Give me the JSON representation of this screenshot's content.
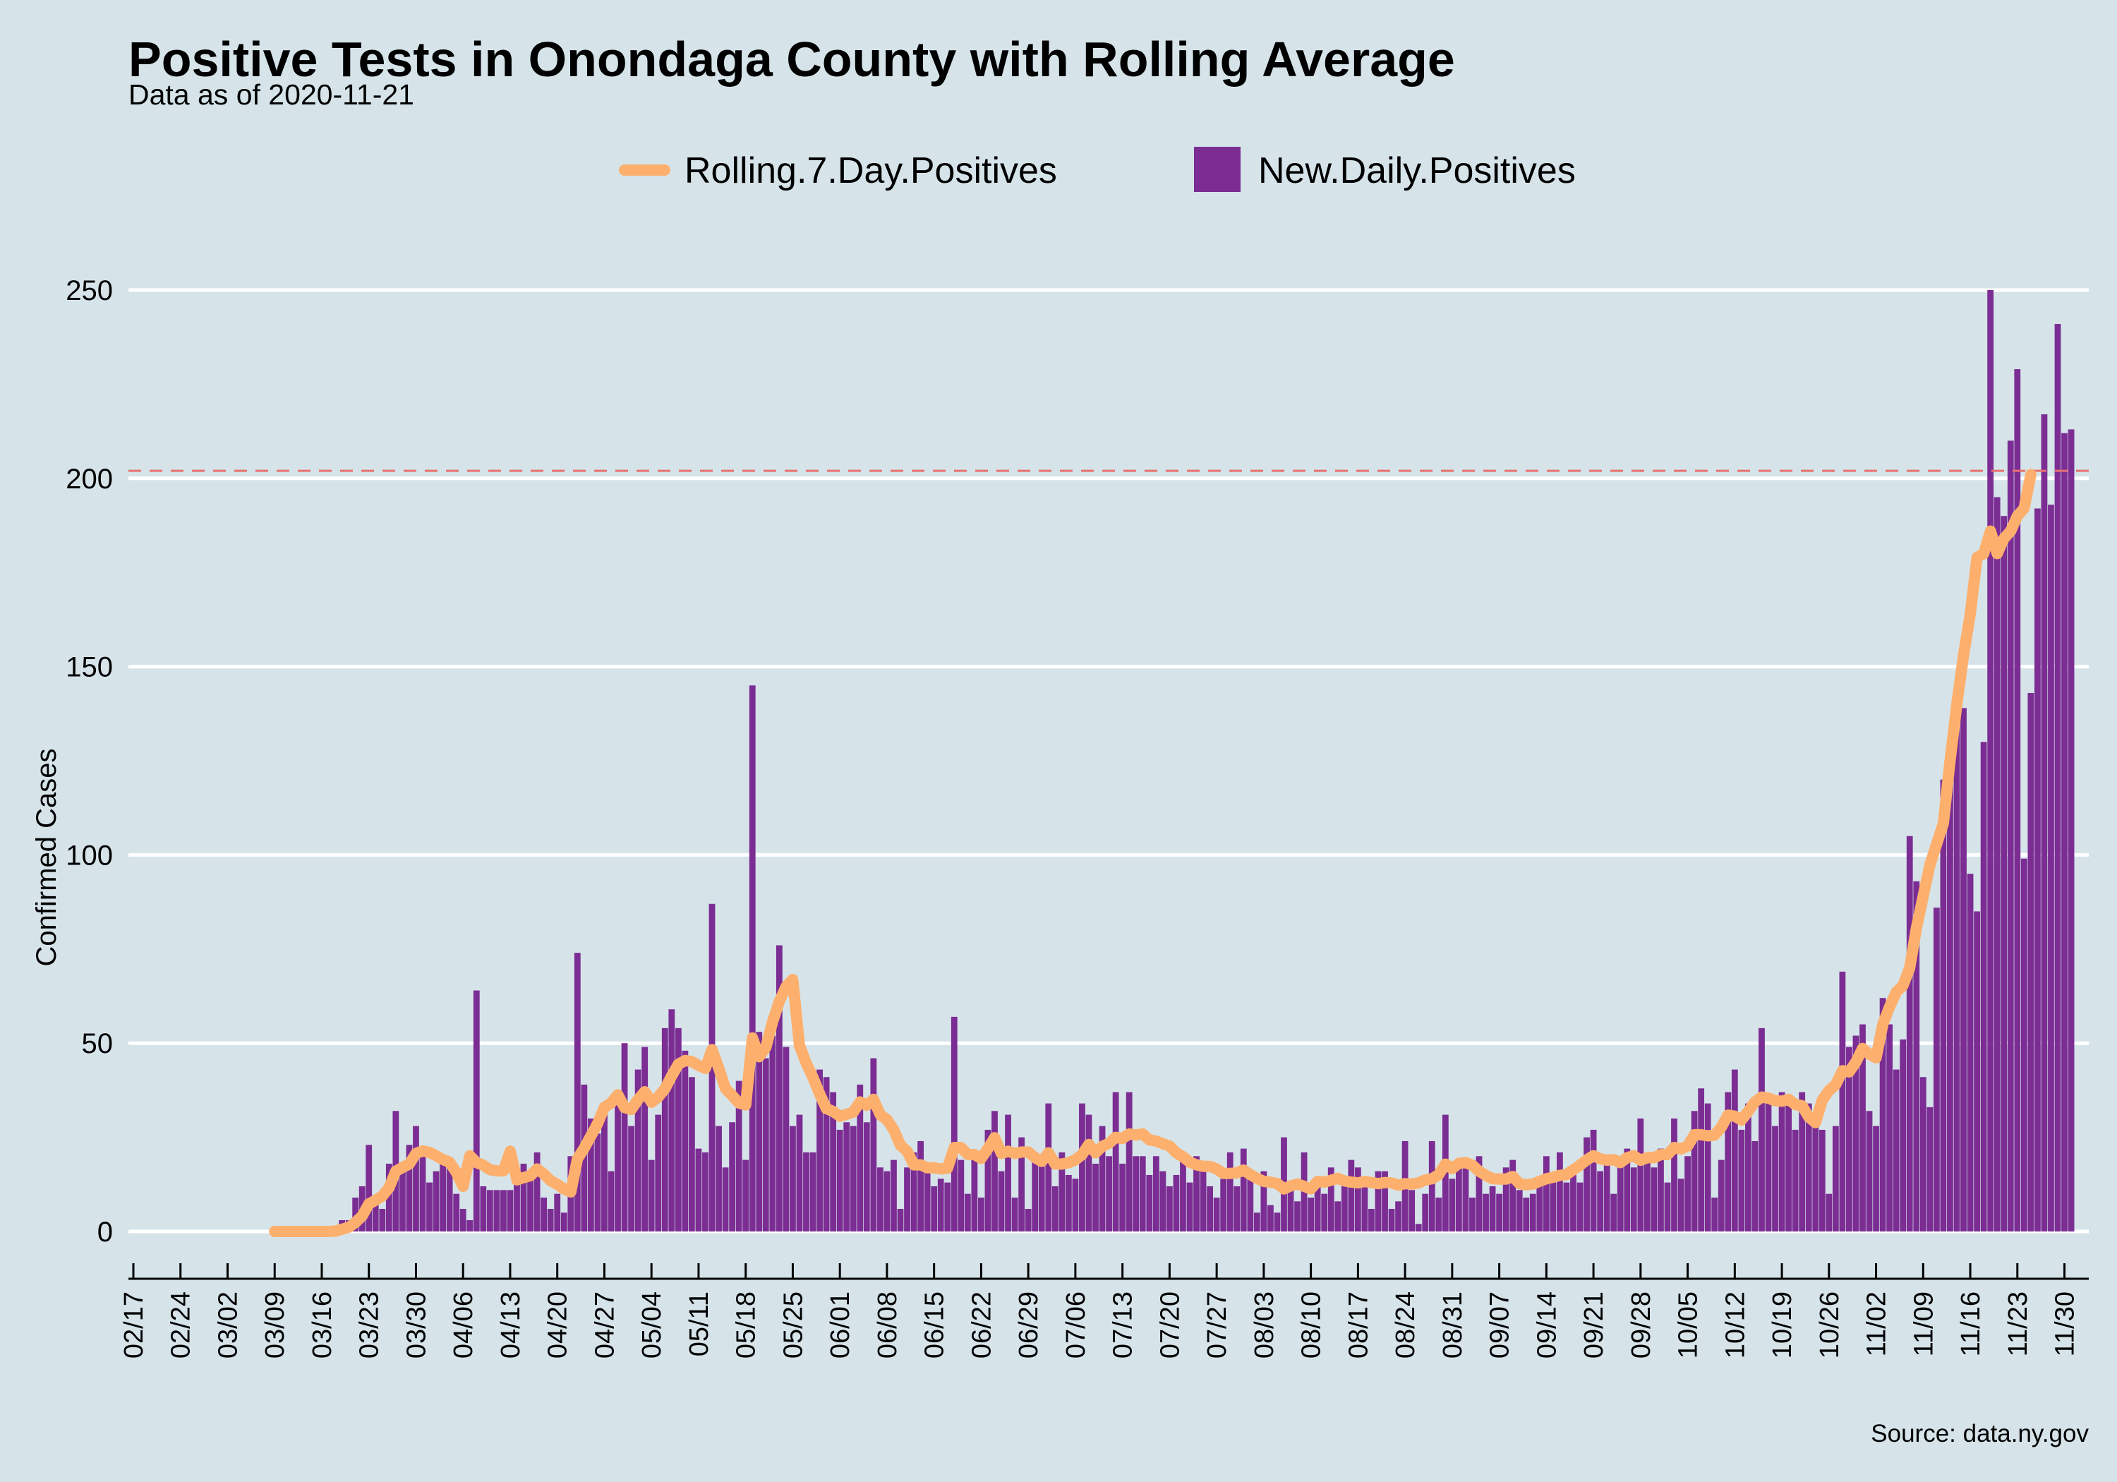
{
  "title": "Positive Tests in Onondaga County with Rolling Average",
  "subtitle": "Data as of 2020-11-21",
  "caption": "Source: data.ny.gov",
  "colors": {
    "background": "#d6e4ea",
    "bars": "#7b2d93",
    "rolling_line": "#fdb06d",
    "threshold_line": "#e8716f",
    "grid": "#ffffff"
  },
  "legend": {
    "position": "top",
    "items": [
      {
        "label": "Rolling.7.Day.Positives",
        "kind": "line",
        "color": "#fdb06d"
      },
      {
        "label": "New.Daily.Positives",
        "kind": "bar",
        "color": "#7b2d93"
      }
    ]
  },
  "chart_data": {
    "type": "bar",
    "ylabel": "Confirmed Cases",
    "xlabel": "",
    "ylim": [
      -10,
      260
    ],
    "xlim": [
      "2020-02-17",
      "2020-12-04"
    ],
    "grid": true,
    "y_ticks": [
      0,
      50,
      100,
      150,
      200,
      250
    ],
    "x_tick_labels": [
      "02/17",
      "02/24",
      "03/02",
      "03/09",
      "03/16",
      "03/23",
      "03/30",
      "04/06",
      "04/13",
      "04/20",
      "04/27",
      "05/04",
      "05/11",
      "05/18",
      "05/25",
      "06/01",
      "06/08",
      "06/15",
      "06/22",
      "06/29",
      "07/06",
      "07/13",
      "07/20",
      "07/27",
      "08/03",
      "08/10",
      "08/17",
      "08/24",
      "08/31",
      "09/07",
      "09/14",
      "09/21",
      "09/28",
      "10/05",
      "10/12",
      "10/19",
      "10/26",
      "11/02",
      "11/09",
      "11/16",
      "11/23",
      "11/30"
    ],
    "x_tick_dates": [
      "2020-02-17",
      "2020-02-24",
      "2020-03-02",
      "2020-03-09",
      "2020-03-16",
      "2020-03-23",
      "2020-03-30",
      "2020-04-06",
      "2020-04-13",
      "2020-04-20",
      "2020-04-27",
      "2020-05-04",
      "2020-05-11",
      "2020-05-18",
      "2020-05-25",
      "2020-06-01",
      "2020-06-08",
      "2020-06-15",
      "2020-06-22",
      "2020-06-29",
      "2020-07-06",
      "2020-07-13",
      "2020-07-20",
      "2020-07-27",
      "2020-08-03",
      "2020-08-10",
      "2020-08-17",
      "2020-08-24",
      "2020-08-31",
      "2020-09-07",
      "2020-09-14",
      "2020-09-21",
      "2020-09-28",
      "2020-10-05",
      "2020-10-12",
      "2020-10-19",
      "2020-10-26",
      "2020-11-02",
      "2020-11-09",
      "2020-11-16",
      "2020-11-23",
      "2020-11-30"
    ],
    "threshold_line": {
      "y": 202,
      "style": "dashed"
    },
    "series": [
      {
        "name": "New.Daily.Positives",
        "type": "bar",
        "start_date": "2020-03-09",
        "values": [
          0,
          0,
          0,
          0,
          0,
          0,
          0,
          0,
          0,
          1,
          3,
          3,
          9,
          12,
          23,
          8,
          6,
          18,
          32,
          16,
          23,
          28,
          21,
          13,
          16,
          20,
          19,
          10,
          6,
          3,
          64,
          12,
          11,
          11,
          11,
          11,
          13,
          18,
          14,
          21,
          9,
          6,
          10,
          5,
          20,
          74,
          39,
          30,
          26,
          34,
          16,
          37,
          50,
          28,
          43,
          49,
          19,
          31,
          54,
          59,
          54,
          48,
          41,
          22,
          21,
          87,
          28,
          17,
          29,
          40,
          19,
          145,
          53,
          46,
          52,
          76,
          49,
          28,
          31,
          21,
          21,
          43,
          41,
          37,
          27,
          29,
          28,
          39,
          29,
          46,
          17,
          16,
          19,
          6,
          17,
          21,
          24,
          18,
          12,
          14,
          13,
          57,
          19,
          10,
          20,
          9,
          27,
          32,
          16,
          31,
          9,
          25,
          6,
          21,
          20,
          34,
          12,
          21,
          15,
          14,
          34,
          31,
          18,
          28,
          20,
          37,
          18,
          37,
          20,
          20,
          15,
          20,
          16,
          12,
          15,
          21,
          13,
          20,
          16,
          12,
          9,
          14,
          21,
          12,
          22,
          14,
          5,
          16,
          7,
          5,
          25,
          13,
          8,
          21,
          9,
          12,
          10,
          17,
          8,
          13,
          19,
          17,
          12,
          6,
          16,
          16,
          6,
          8,
          24,
          11,
          2,
          10,
          24,
          9,
          31,
          14,
          17,
          19,
          9,
          20,
          10,
          12,
          10,
          17,
          19,
          11,
          9,
          10,
          12,
          20,
          13,
          21,
          13,
          15,
          13,
          25,
          27,
          16,
          20,
          10,
          18,
          22,
          17,
          30,
          20,
          17,
          22,
          13,
          30,
          14,
          20,
          32,
          38,
          34,
          9,
          19,
          37,
          43,
          27,
          34,
          24,
          54,
          35,
          28,
          37,
          36,
          27,
          37,
          34,
          29,
          27,
          10,
          28,
          69,
          49,
          52,
          55,
          32,
          28,
          62,
          55,
          43,
          51,
          105,
          93,
          41,
          33,
          86,
          120,
          121,
          135,
          139,
          95,
          85,
          130,
          250,
          195,
          190,
          210,
          229,
          99,
          143,
          192,
          217,
          193,
          241,
          212,
          213
        ]
      },
      {
        "name": "Rolling.7.Day.Positives",
        "type": "line",
        "start_date": "2020-03-09",
        "values": [
          0,
          0,
          0,
          0,
          0,
          0,
          0,
          0,
          0,
          0.1,
          0.6,
          1.1,
          2.4,
          4.1,
          7.3,
          8.3,
          9.4,
          11.6,
          16.0,
          17.0,
          17.9,
          20.7,
          21.4,
          21.0,
          20.1,
          19.1,
          18.4,
          15.7,
          12.0,
          20.1,
          18.3,
          17.6,
          16.4,
          16.1,
          16.1,
          21.3,
          13.7,
          14.3,
          14.8,
          16.6,
          15.3,
          13.5,
          12.5,
          11.3,
          10.5,
          19.3,
          22.1,
          25.4,
          28.7,
          33.0,
          34.1,
          36.3,
          32.9,
          32.4,
          35.0,
          37.1,
          34.3,
          35.7,
          37.9,
          41.3,
          44.4,
          45.4,
          45.1,
          44.1,
          43.3,
          48.3,
          43.4,
          37.9,
          36.1,
          34.1,
          33.6,
          51.4,
          46.4,
          48.9,
          55.7,
          61.1,
          65.0,
          66.9,
          49.3,
          44.7,
          40.9,
          36.5,
          32.6,
          31.9,
          30.6,
          31.1,
          31.7,
          34.4,
          33.5,
          35.1,
          31.0,
          29.7,
          27.0,
          22.9,
          21.3,
          17.7,
          17.7,
          16.9,
          16.9,
          16.6,
          16.8,
          22.3,
          22.3,
          20.5,
          20.4,
          19.4,
          22.0,
          24.9,
          20.7,
          21.3,
          20.7,
          21.1,
          21.1,
          19.6,
          18.6,
          20.9,
          17.9,
          17.9,
          18.3,
          19.0,
          20.4,
          23.1,
          20.9,
          22.6,
          23.4,
          25.0,
          24.7,
          25.9,
          25.6,
          25.9,
          24.3,
          24.0,
          23.3,
          22.7,
          20.9,
          19.8,
          18.4,
          17.7,
          17.3,
          17.3,
          16.6,
          15.4,
          15.4,
          15.6,
          16.3,
          15.1,
          14.1,
          13.3,
          13.1,
          12.7,
          11.3,
          12.1,
          12.6,
          12.0,
          11.3,
          13.3,
          13.1,
          13.6,
          14.1,
          13.4,
          13.1,
          12.9,
          13.3,
          13.0,
          12.7,
          13.0,
          12.9,
          12.3,
          12.7,
          12.6,
          12.9,
          13.7,
          14.0,
          15.1,
          17.9,
          16.7,
          18.1,
          18.3,
          17.6,
          16.0,
          14.9,
          14.0,
          13.9,
          13.9,
          14.6,
          12.7,
          12.4,
          12.6,
          13.3,
          14.0,
          14.4,
          14.9,
          15.1,
          16.4,
          17.6,
          19.0,
          20.1,
          19.3,
          18.9,
          19.1,
          18.3,
          19.6,
          20.1,
          18.9,
          19.6,
          19.6,
          20.4,
          20.4,
          22.3,
          21.9,
          22.7,
          25.7,
          25.7,
          25.4,
          25.6,
          27.7,
          30.9,
          30.6,
          29.6,
          31.9,
          34.4,
          35.7,
          35.4,
          34.7,
          34.6,
          35.1,
          33.7,
          33.4,
          30.4,
          28.9,
          34.9,
          37.4,
          39.0,
          42.7,
          42.4,
          45.0,
          48.6,
          47.1,
          46.1,
          55.0,
          59.6,
          63.6,
          65.3,
          70.0,
          80.6,
          89.0,
          97.3,
          102.9,
          108.4,
          125.0,
          140.0,
          153.0,
          164.0,
          179.0,
          180.0,
          186.0,
          180.0,
          184.0,
          186.0,
          190.0,
          192.0,
          201.0
        ]
      }
    ]
  }
}
